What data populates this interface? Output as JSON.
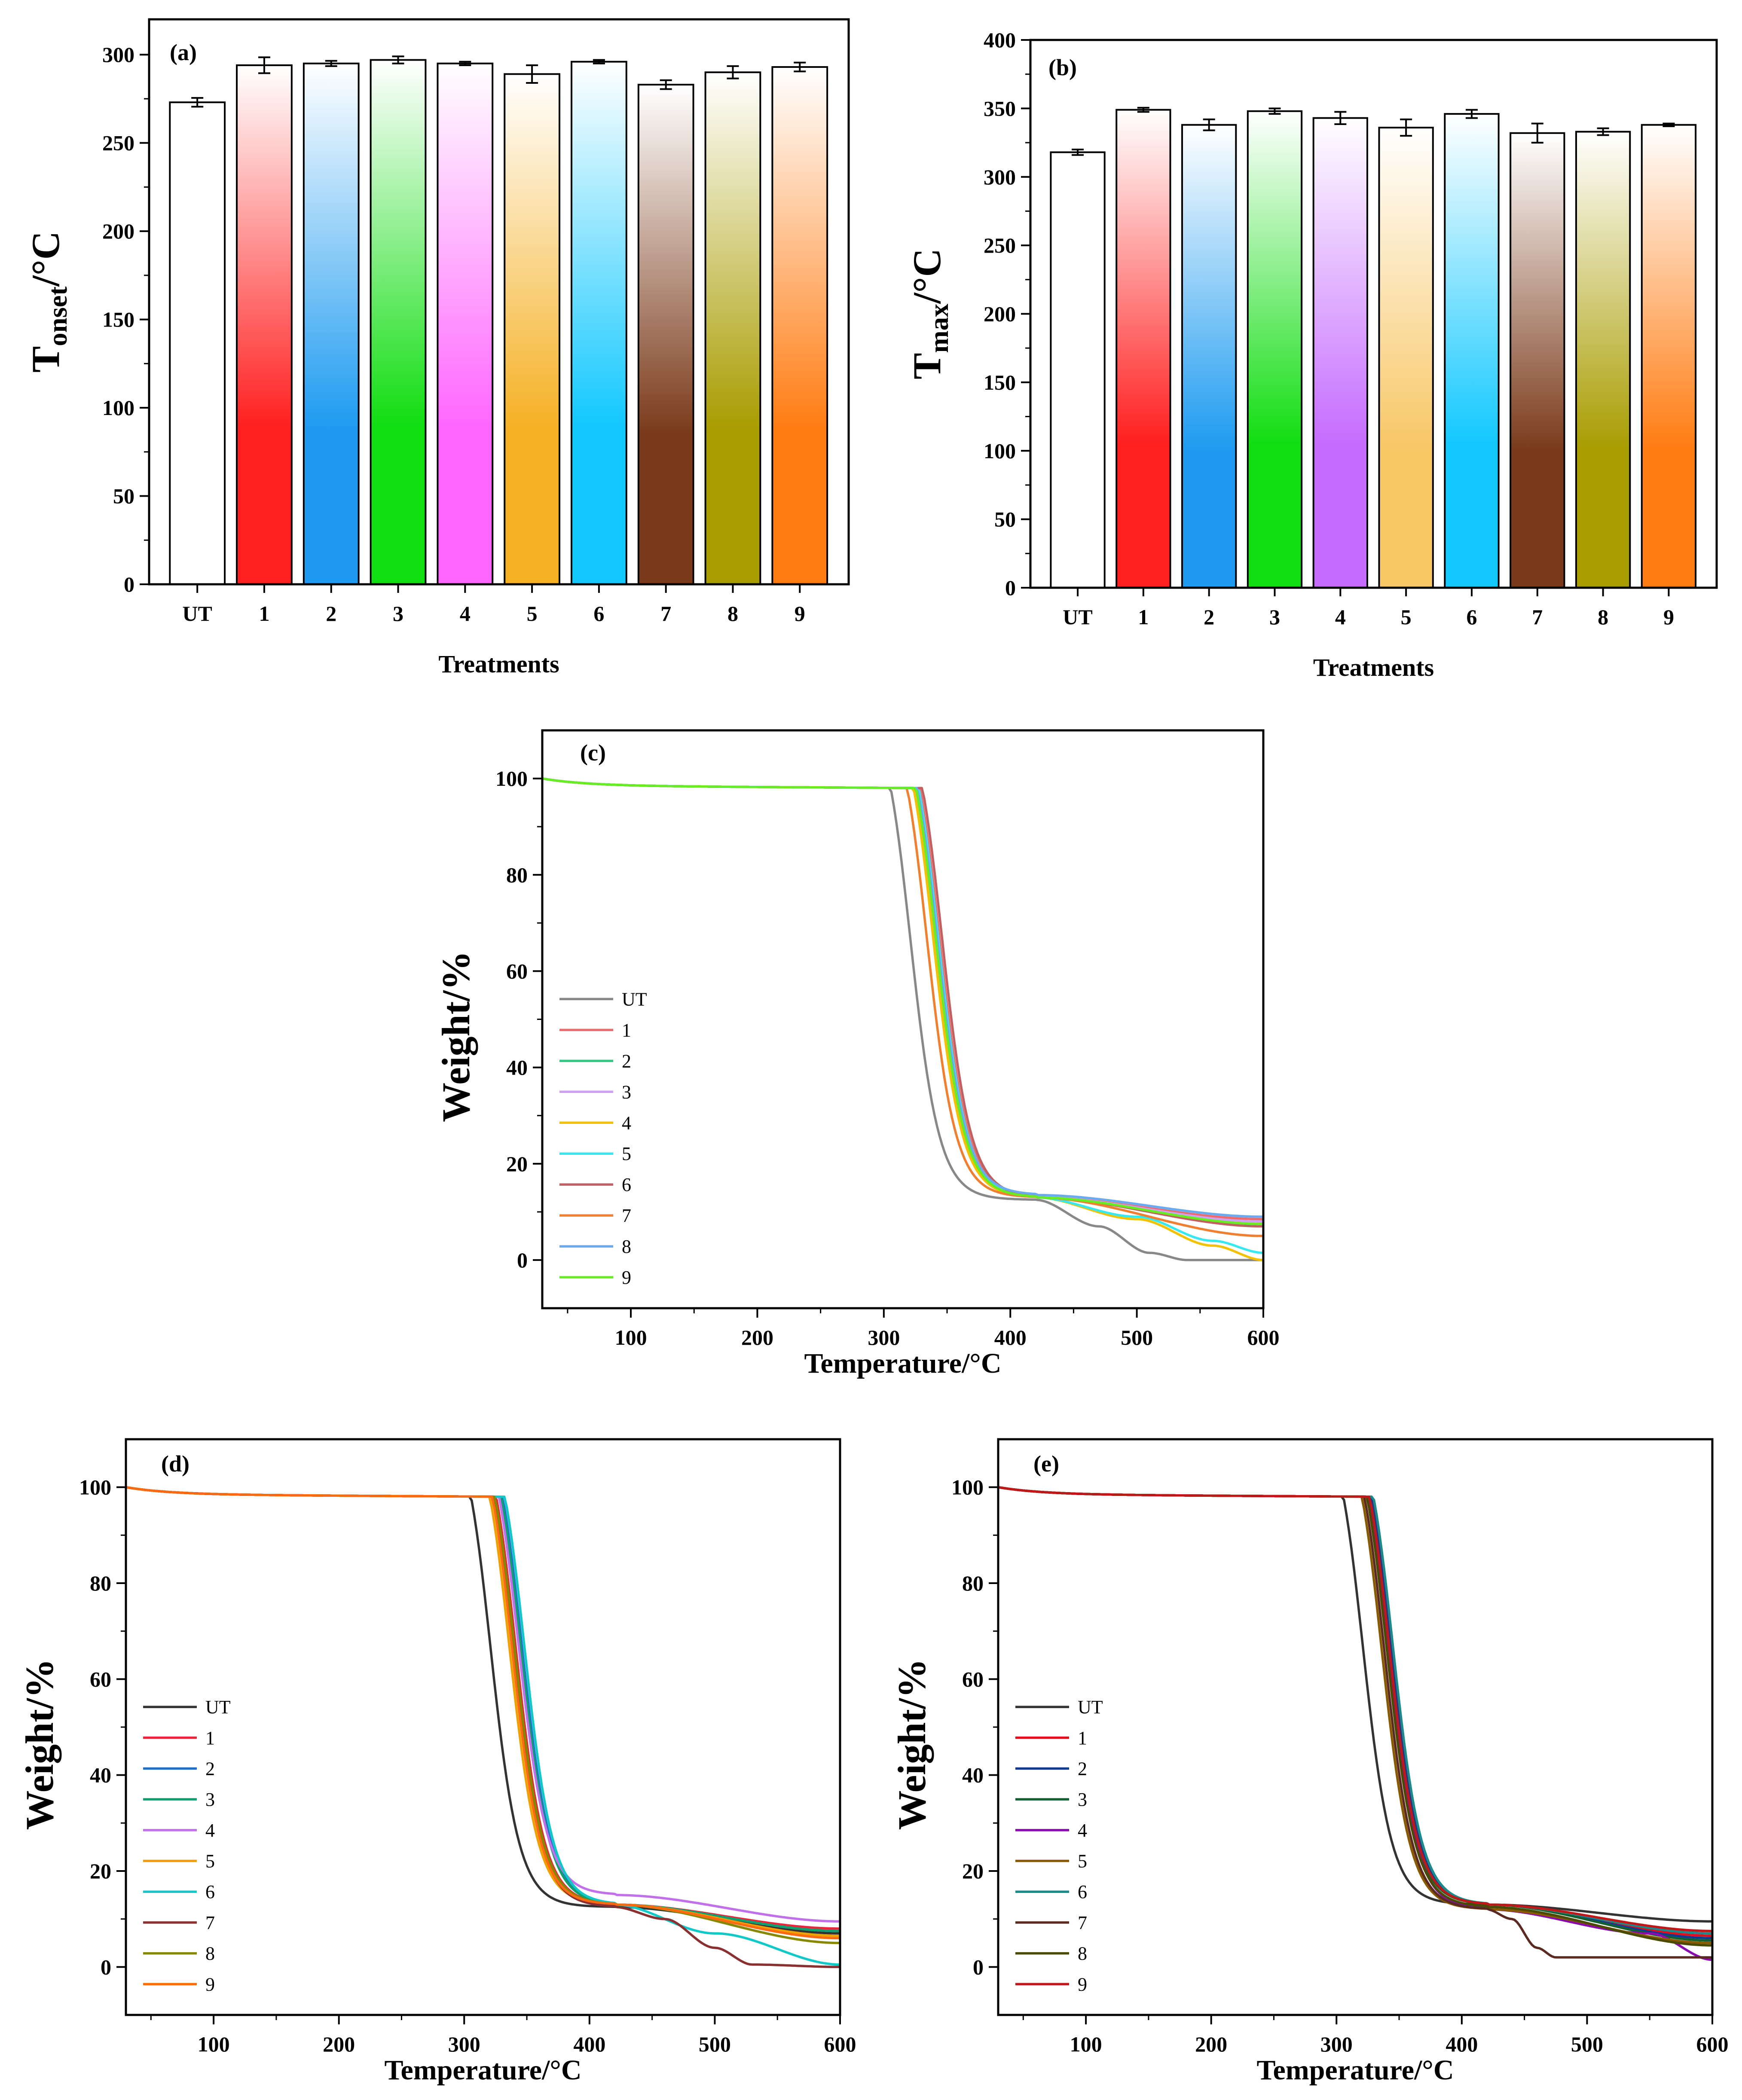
{
  "chart_data": [
    {
      "id": "a",
      "type": "bar",
      "panel_label": "(a)",
      "title": "",
      "xlabel": "Treatments",
      "ylabel_main": "T",
      "ylabel_sub": "onset",
      "ylabel_rest": "/°C",
      "ylim": [
        0,
        320
      ],
      "yticks": [
        0,
        50,
        100,
        150,
        200,
        250,
        300
      ],
      "categories": [
        "UT",
        "1",
        "2",
        "3",
        "4",
        "5",
        "6",
        "7",
        "8",
        "9"
      ],
      "values": [
        273,
        294,
        295,
        297,
        295,
        289,
        296,
        283,
        290,
        293
      ],
      "errors": [
        2.5,
        4.5,
        1.5,
        2.0,
        1.0,
        5.0,
        1.0,
        2.5,
        3.5,
        2.5
      ],
      "colors": [
        "#ffffff",
        "#ff1f1f",
        "#1e9bf0",
        "#11dd11",
        "#ff66ff",
        "#f5b023",
        "#12c8ff",
        "#7a3a1a",
        "#a89c00",
        "#ff7c12"
      ]
    },
    {
      "id": "b",
      "type": "bar",
      "panel_label": "(b)",
      "title": "",
      "xlabel": "Treatments",
      "ylabel_main": "T",
      "ylabel_sub": "max",
      "ylabel_rest": "/°C",
      "ylim": [
        0,
        400
      ],
      "yticks": [
        0,
        50,
        100,
        150,
        200,
        250,
        300,
        350,
        400
      ],
      "categories": [
        "UT",
        "1",
        "2",
        "3",
        "4",
        "5",
        "6",
        "7",
        "8",
        "9"
      ],
      "values": [
        318,
        349,
        338,
        348,
        343,
        336,
        346,
        332,
        333,
        338
      ],
      "errors": [
        2.0,
        1.5,
        4.0,
        2.0,
        4.5,
        6.0,
        3.0,
        7.0,
        2.5,
        1.0
      ],
      "colors": [
        "#ffffff",
        "#ff1f1f",
        "#1e9bf0",
        "#11dd11",
        "#c56bff",
        "#f8c766",
        "#12c8ff",
        "#7a3a1a",
        "#a89c00",
        "#ff7c12"
      ]
    },
    {
      "id": "c",
      "type": "line",
      "panel_label": "(c)",
      "title": "",
      "xlabel": "Temperature/°C",
      "ylabel": "Weight/%",
      "xlim": [
        30,
        600
      ],
      "ylim": [
        -10,
        110
      ],
      "xticks": [
        100,
        200,
        300,
        400,
        500,
        600
      ],
      "yticks": [
        0,
        20,
        40,
        60,
        80,
        100
      ],
      "legend": "left",
      "series": [
        {
          "name": "UT",
          "color": "#888888",
          "mid": 318,
          "tail": [
            [
              420,
              12.5
            ],
            [
              470,
              7
            ],
            [
              510,
              1.5
            ],
            [
              540,
              0
            ],
            [
              600,
              0
            ]
          ]
        },
        {
          "name": "1",
          "color": "#ef6b6b",
          "mid": 341,
          "tail": [
            [
              420,
              13
            ],
            [
              600,
              8.5
            ]
          ]
        },
        {
          "name": "2",
          "color": "#2ecb87",
          "mid": 339,
          "tail": [
            [
              420,
              13
            ],
            [
              600,
              7.5
            ]
          ]
        },
        {
          "name": "3",
          "color": "#cfa0f0",
          "mid": 337,
          "tail": [
            [
              420,
              13
            ],
            [
              600,
              8
            ]
          ]
        },
        {
          "name": "4",
          "color": "#f2c200",
          "mid": 336,
          "tail": [
            [
              420,
              13
            ],
            [
              500,
              8.5
            ],
            [
              560,
              3
            ],
            [
              600,
              0
            ]
          ]
        },
        {
          "name": "5",
          "color": "#38e8f0",
          "mid": 340,
          "tail": [
            [
              420,
              13
            ],
            [
              500,
              9
            ],
            [
              560,
              4
            ],
            [
              600,
              1.5
            ]
          ]
        },
        {
          "name": "6",
          "color": "#c06060",
          "mid": 343,
          "tail": [
            [
              420,
              13
            ],
            [
              600,
              7
            ]
          ]
        },
        {
          "name": "7",
          "color": "#f08030",
          "mid": 331,
          "tail": [
            [
              420,
              13
            ],
            [
              600,
              5
            ]
          ]
        },
        {
          "name": "8",
          "color": "#6aaaf0",
          "mid": 339,
          "tail": [
            [
              420,
              13.5
            ],
            [
              600,
              9
            ]
          ]
        },
        {
          "name": "9",
          "color": "#66ee22",
          "mid": 338,
          "tail": [
            [
              420,
              13
            ],
            [
              600,
              7.5
            ]
          ]
        }
      ]
    },
    {
      "id": "d",
      "type": "line",
      "panel_label": "(d)",
      "title": "",
      "xlabel": "Temperature/°C",
      "ylabel": "Weight/%",
      "xlim": [
        30,
        600
      ],
      "ylim": [
        -10,
        110
      ],
      "xticks": [
        100,
        200,
        300,
        400,
        500,
        600
      ],
      "yticks": [
        0,
        20,
        40,
        60,
        80,
        100
      ],
      "legend": "left",
      "series": [
        {
          "name": "UT",
          "color": "#333333",
          "mid": 318,
          "tail": [
            [
              420,
              12.5
            ],
            [
              600,
              7
            ]
          ]
        },
        {
          "name": "1",
          "color": "#e8283a",
          "mid": 338,
          "tail": [
            [
              420,
              13
            ],
            [
              600,
              8
            ]
          ]
        },
        {
          "name": "2",
          "color": "#1e6ed0",
          "mid": 343,
          "tail": [
            [
              420,
              13
            ],
            [
              600,
              7.5
            ]
          ]
        },
        {
          "name": "3",
          "color": "#10a070",
          "mid": 342,
          "tail": [
            [
              420,
              13
            ],
            [
              600,
              7.5
            ]
          ]
        },
        {
          "name": "4",
          "color": "#c070e8",
          "mid": 340,
          "tail": [
            [
              420,
              15
            ],
            [
              600,
              9.5
            ]
          ]
        },
        {
          "name": "5",
          "color": "#f0a000",
          "mid": 333,
          "tail": [
            [
              420,
              13
            ],
            [
              600,
              6.5
            ]
          ]
        },
        {
          "name": "6",
          "color": "#10c8c8",
          "mid": 345,
          "tail": [
            [
              420,
              13
            ],
            [
              500,
              7
            ],
            [
              600,
              0.5
            ]
          ]
        },
        {
          "name": "7",
          "color": "#8a3030",
          "mid": 336,
          "tail": [
            [
              420,
              12.5
            ],
            [
              460,
              10
            ],
            [
              500,
              4
            ],
            [
              530,
              0.5
            ],
            [
              600,
              0
            ]
          ]
        },
        {
          "name": "8",
          "color": "#888800",
          "mid": 337,
          "tail": [
            [
              420,
              13
            ],
            [
              600,
              5
            ]
          ]
        },
        {
          "name": "9",
          "color": "#ff6a10",
          "mid": 335,
          "tail": [
            [
              420,
              13
            ],
            [
              600,
              6
            ]
          ]
        }
      ]
    },
    {
      "id": "e",
      "type": "line",
      "panel_label": "(e)",
      "title": "",
      "xlabel": "Temperature/°C",
      "ylabel": "Weight/%",
      "xlim": [
        30,
        600
      ],
      "ylim": [
        -10,
        110
      ],
      "xticks": [
        100,
        200,
        300,
        400,
        500,
        600
      ],
      "yticks": [
        0,
        20,
        40,
        60,
        80,
        100
      ],
      "legend": "left",
      "series": [
        {
          "name": "UT",
          "color": "#333333",
          "mid": 318,
          "tail": [
            [
              420,
              13
            ],
            [
              600,
              9.5
            ]
          ]
        },
        {
          "name": "1",
          "color": "#e0101a",
          "mid": 341,
          "tail": [
            [
              420,
              13
            ],
            [
              600,
              6.5
            ]
          ]
        },
        {
          "name": "2",
          "color": "#103a90",
          "mid": 340,
          "tail": [
            [
              420,
              13
            ],
            [
              600,
              6
            ]
          ]
        },
        {
          "name": "3",
          "color": "#106030",
          "mid": 338,
          "tail": [
            [
              420,
              13
            ],
            [
              600,
              5.5
            ]
          ]
        },
        {
          "name": "4",
          "color": "#8a0ab0",
          "mid": 338,
          "tail": [
            [
              420,
              12
            ],
            [
              550,
              7
            ],
            [
              600,
              1.5
            ]
          ]
        },
        {
          "name": "5",
          "color": "#8a5a00",
          "mid": 333,
          "tail": [
            [
              420,
              12
            ],
            [
              600,
              5
            ]
          ]
        },
        {
          "name": "6",
          "color": "#1a8a8a",
          "mid": 342,
          "tail": [
            [
              420,
              13
            ],
            [
              600,
              7
            ]
          ]
        },
        {
          "name": "7",
          "color": "#5a2a20",
          "mid": 335,
          "tail": [
            [
              420,
              12
            ],
            [
              440,
              10
            ],
            [
              460,
              4
            ],
            [
              475,
              2
            ],
            [
              600,
              2
            ]
          ]
        },
        {
          "name": "8",
          "color": "#4a4a00",
          "mid": 337,
          "tail": [
            [
              420,
              12.5
            ],
            [
              600,
              4.5
            ]
          ]
        },
        {
          "name": "9",
          "color": "#c01818",
          "mid": 339,
          "tail": [
            [
              420,
              13
            ],
            [
              600,
              7.5
            ]
          ]
        }
      ]
    }
  ]
}
